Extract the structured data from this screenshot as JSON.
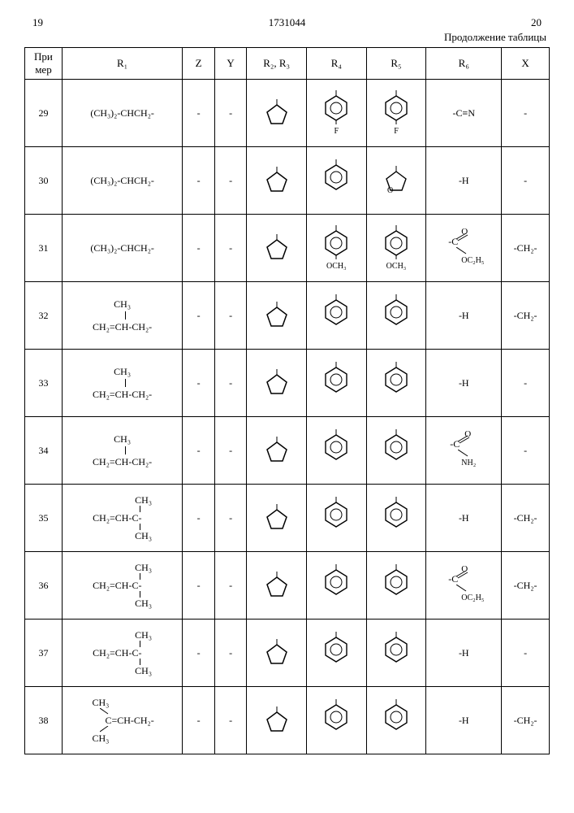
{
  "page_left": "19",
  "doc_number": "1731044",
  "page_right": "20",
  "continuation": "Продолжение таблицы",
  "headers": {
    "ex": "При мер",
    "r1": "R₁",
    "z": "Z",
    "y": "Y",
    "r23": "R₂, R₃",
    "r4": "R₄",
    "r5": "R₅",
    "r6": "R₆",
    "x": "X"
  },
  "rows": [
    {
      "ex": "29",
      "r1": "(CH₃)₂-CHCH₂-",
      "z": "-",
      "y": "-",
      "r23": "pentagon",
      "r4": "phenyl-F",
      "r5": "phenyl-F",
      "r6": "-C≡N",
      "x": "-"
    },
    {
      "ex": "30",
      "r1": "(CH₃)₂-CHCH₂-",
      "z": "-",
      "y": "-",
      "r23": "pentagon",
      "r4": "phenyl",
      "r5": "furyl",
      "r6": "-H",
      "x": "-"
    },
    {
      "ex": "31",
      "r1": "(CH₃)₂-CHCH₂-",
      "z": "-",
      "y": "-",
      "r23": "pentagon",
      "r4": "phenyl-OCH3",
      "r5": "phenyl-OCH3",
      "r6": "ester",
      "x": "-CH₂-"
    },
    {
      "ex": "32",
      "r1": "methallyl",
      "z": "-",
      "y": "-",
      "r23": "pentagon",
      "r4": "phenyl",
      "r5": "phenyl",
      "r6": "-H",
      "x": "-CH₂-"
    },
    {
      "ex": "33",
      "r1": "methallyl",
      "z": "-",
      "y": "-",
      "r23": "pentagon",
      "r4": "phenyl",
      "r5": "phenyl",
      "r6": "-H",
      "x": "-"
    },
    {
      "ex": "34",
      "r1": "methallyl",
      "z": "-",
      "y": "-",
      "r23": "pentagon",
      "r4": "phenyl",
      "r5": "phenyl",
      "r6": "amide",
      "x": "-"
    },
    {
      "ex": "35",
      "r1": "dimethylallyl",
      "z": "-",
      "y": "-",
      "r23": "pentagon",
      "r4": "phenyl",
      "r5": "phenyl",
      "r6": "-H",
      "x": "-CH₂-"
    },
    {
      "ex": "36",
      "r1": "dimethylallyl",
      "z": "-",
      "y": "-",
      "r23": "pentagon",
      "r4": "phenyl",
      "r5": "phenyl",
      "r6": "ester",
      "x": "-CH₂-"
    },
    {
      "ex": "37",
      "r1": "dimethylallyl",
      "z": "-",
      "y": "-",
      "r23": "pentagon",
      "r4": "phenyl",
      "r5": "phenyl",
      "r6": "-H",
      "x": "-"
    },
    {
      "ex": "38",
      "r1": "isobutenyl",
      "z": "-",
      "y": "-",
      "r23": "pentagon",
      "r4": "phenyl",
      "r5": "phenyl",
      "r6": "-H",
      "x": "-CH₂-"
    }
  ],
  "labels": {
    "F": "F",
    "OCH3": "OCH₃",
    "CH3": "CH₃",
    "CH2CHCH2": "CH₂=CH-CH₂-",
    "CH2CHC": "CH₂=CH-C-",
    "CCHCH2": "C=CH-CH₂-",
    "cyano": "-C≡N",
    "H": "-H",
    "CH2": "-CH₂-",
    "esterC": "-C",
    "OC2H5": "OC₂H₅",
    "NH2": "NH₂",
    "O": "O"
  }
}
